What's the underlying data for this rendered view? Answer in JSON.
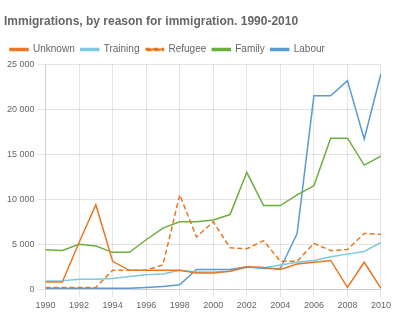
{
  "chart_data": {
    "type": "line",
    "title": "Immigrations, by reason for immigration. 1990-2010",
    "x": [
      1990,
      1991,
      1992,
      1993,
      1994,
      1995,
      1996,
      1997,
      1998,
      1999,
      2000,
      2001,
      2002,
      2003,
      2004,
      2005,
      2006,
      2007,
      2008,
      2009,
      2010
    ],
    "series": [
      {
        "name": "Unknown",
        "color": "#E87722",
        "line_style": "solid",
        "values": [
          800,
          800,
          5200,
          9400,
          3100,
          2100,
          2100,
          2100,
          2100,
          1800,
          1800,
          2000,
          2500,
          2400,
          2200,
          2800,
          3000,
          3200,
          200,
          3000,
          100
        ]
      },
      {
        "name": "Training",
        "color": "#7EC8E3",
        "line_style": "solid",
        "values": [
          900,
          950,
          1100,
          1100,
          1200,
          1400,
          1600,
          1700,
          2100,
          1900,
          1900,
          2000,
          2400,
          2400,
          2700,
          3000,
          3200,
          3600,
          3900,
          4200,
          5200
        ]
      },
      {
        "name": "Refugee",
        "color": "#E87722",
        "line_style": "dashed",
        "values": [
          200,
          200,
          200,
          200,
          2100,
          2100,
          2100,
          2700,
          10500,
          5800,
          7500,
          4600,
          4500,
          5400,
          3100,
          3100,
          5100,
          4300,
          4400,
          6200,
          6100
        ]
      },
      {
        "name": "Family",
        "color": "#6AAF3D",
        "line_style": "solid",
        "values": [
          4400,
          4300,
          5000,
          4800,
          4100,
          4100,
          5500,
          6800,
          7500,
          7500,
          7700,
          8300,
          13000,
          9300,
          9300,
          10500,
          11500,
          16800,
          16800,
          13800,
          14800
        ]
      },
      {
        "name": "Labour",
        "color": "#5B9BD5",
        "line_style": "solid",
        "values": [
          100,
          100,
          100,
          100,
          100,
          100,
          200,
          300,
          500,
          2200,
          2200,
          2200,
          2500,
          2300,
          2300,
          6200,
          21500,
          21500,
          23200,
          16700,
          24000
        ]
      }
    ],
    "xlim": [
      1990,
      2010
    ],
    "xticks": [
      1990,
      1992,
      1994,
      1996,
      1998,
      2000,
      2002,
      2004,
      2006,
      2008,
      2010
    ],
    "ylim": [
      0,
      25000
    ],
    "yticks": [
      0,
      {
        "value": 5000,
        "label": "5 000"
      },
      {
        "value": 10000,
        "label": "10 000"
      },
      {
        "value": 15000,
        "label": "15 000"
      },
      {
        "value": 20000,
        "label": "20 000"
      },
      {
        "value": 25000,
        "label": "25 000"
      }
    ],
    "grid": true,
    "legend": "upper left"
  }
}
